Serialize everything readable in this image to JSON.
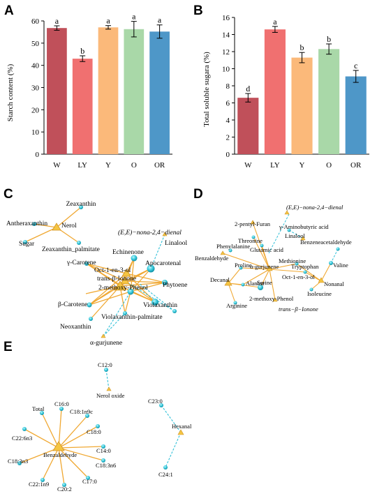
{
  "panels": {
    "A": "A",
    "B": "B",
    "C": "C",
    "D": "D",
    "E": "E"
  },
  "chart_data": [
    {
      "panel": "A",
      "type": "bar",
      "categories": [
        "W",
        "LY",
        "Y",
        "O",
        "OR"
      ],
      "values": [
        56.8,
        43.0,
        57.1,
        56.3,
        55.2
      ],
      "errors": [
        1.0,
        1.3,
        0.8,
        3.5,
        3.0
      ],
      "significance": [
        "a",
        "b",
        "a",
        "a",
        "a"
      ],
      "colors": [
        "#c0505a",
        "#f07070",
        "#fbb97a",
        "#a9d8a8",
        "#4e97c8"
      ],
      "ylabel": "Starch content  (%)",
      "ylim": [
        0,
        60
      ],
      "yticks": [
        0,
        10,
        20,
        30,
        40,
        50,
        60
      ]
    },
    {
      "panel": "B",
      "type": "bar",
      "categories": [
        "W",
        "LY",
        "Y",
        "O",
        "OR"
      ],
      "values": [
        6.6,
        14.6,
        11.3,
        12.3,
        9.1
      ],
      "errors": [
        0.5,
        0.35,
        0.6,
        0.6,
        0.7
      ],
      "significance": [
        "d",
        "a",
        "b",
        "b",
        "c"
      ],
      "colors": [
        "#c0505a",
        "#f07070",
        "#fbb97a",
        "#a9d8a8",
        "#4e97c8"
      ],
      "ylabel": "Total soluble sugara (%)",
      "ylim": [
        0,
        16
      ],
      "yticks": [
        0,
        2,
        4,
        6,
        8,
        10,
        12,
        14,
        16
      ]
    }
  ],
  "networks": [
    {
      "panel": "C",
      "labels": [
        "Zeaxanthin",
        "Antheraxanthin",
        "Nerol",
        "Sugar",
        "Zeaxanthin_palmitate",
        "(E,E)−nona-2,4−dienal",
        "Linalool",
        "Echinenone",
        "Apocarotenal",
        "γ-Carotene",
        "Oct-1-en-3-ol",
        "trans-β-Ionone",
        "2-methoxy-Phenol",
        "Phytoene",
        "β-Carotene",
        "Violaxanthin",
        "Violaxanthin-palmitate",
        "Neoxanthin",
        "α-gurjunene"
      ]
    },
    {
      "panel": "D",
      "labels": [
        "(E,E)−nona-2,4−dienal",
        "2-pentyl-Furan",
        "γ-Aminobutyric acid",
        "Threonine",
        "Linalool",
        "Phenylalanine",
        "Glutamic acid",
        "Benzeneacetaldehyde",
        "Benzaldehyde",
        "Proline",
        "α-gurjunene",
        "Methionine",
        "Tryptophan",
        "Valine",
        "Oct-1-en-3-ol",
        "Decanal",
        "Alanine",
        "Serine",
        "Nonanal",
        "Isoleucine",
        "2-methoxy-Phenol",
        "Arginine",
        "trans−β−Ionone"
      ]
    },
    {
      "panel": "E",
      "labels": [
        "C12:0",
        "Nerol oxide",
        "C16:0",
        "Total",
        "C18:1n9c",
        "C22:6n3",
        "C18:0",
        "C23:0",
        "C14:0",
        "C18:3n3",
        "Benzaldehyde",
        "Hexanal",
        "C18:3n6",
        "C17:0",
        "C22:1n9",
        "C20:2",
        "C24:1"
      ]
    }
  ]
}
